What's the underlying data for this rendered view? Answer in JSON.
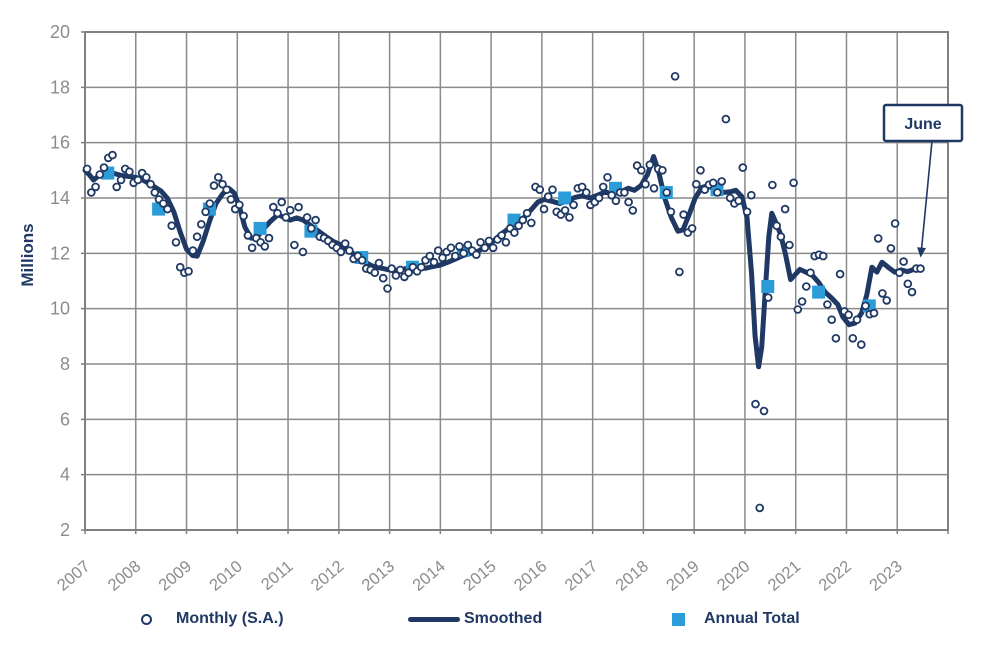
{
  "colors": {
    "navy": "#1f3864",
    "annual_blue": "#2b9cd8",
    "grid": "#8a8a8a",
    "border": "#808080",
    "tick_label": "#8c8c8c",
    "background": "#ffffff"
  },
  "legend": {
    "monthly_label": "Monthly (S.A.)",
    "smoothed_label": "Smoothed",
    "annual_label": "Annual Total"
  },
  "annotation": {
    "label": "June"
  },
  "chart_data": {
    "type": "line",
    "title": "",
    "ylabel": "Millions",
    "ylim": [
      2,
      20
    ],
    "y_ticks": [
      20,
      18,
      16,
      14,
      12,
      10,
      8,
      6,
      4,
      2
    ],
    "xlim": [
      2007,
      2024
    ],
    "x_tick_labels": [
      "2007",
      "2008",
      "2009",
      "2010",
      "2011",
      "2012",
      "2013",
      "2014",
      "2015",
      "2016",
      "2017",
      "2018",
      "2019",
      "2020",
      "2021",
      "2022",
      "2023"
    ],
    "grid": true,
    "legend_position": "bottom",
    "annotation": {
      "label": "June",
      "points_to_year": 2023.46,
      "points_to_value": 11.45
    },
    "series": [
      {
        "name": "Monthly (S.A.)",
        "type": "scatter",
        "monthly": [
          {
            "year": 2007,
            "values": [
              15.05,
              14.2,
              14.4,
              14.85,
              15.1,
              15.45,
              15.55,
              14.4,
              14.65,
              15.05,
              14.95,
              14.55
            ]
          },
          {
            "year": 2008,
            "values": [
              14.65,
              14.9,
              14.75,
              14.5,
              14.2,
              13.95,
              13.8,
              13.6,
              13.0,
              12.4,
              11.5,
              11.3
            ]
          },
          {
            "year": 2009,
            "values": [
              11.35,
              12.1,
              12.6,
              13.05,
              13.5,
              13.8,
              14.45,
              14.75,
              14.5,
              14.3,
              13.95,
              13.6
            ]
          },
          {
            "year": 2010,
            "values": [
              13.75,
              13.35,
              12.65,
              12.2,
              12.55,
              12.4,
              12.25,
              12.55,
              13.67,
              13.45,
              13.85,
              13.3
            ]
          },
          {
            "year": 2011,
            "values": [
              13.56,
              12.3,
              13.67,
              12.05,
              13.3,
              12.9,
              13.2,
              12.6,
              12.55,
              12.45,
              12.3,
              12.2
            ]
          },
          {
            "year": 2012,
            "values": [
              12.05,
              12.35,
              12.1,
              11.8,
              11.9,
              11.75,
              11.45,
              11.4,
              11.3,
              11.65,
              11.1,
              10.73
            ]
          },
          {
            "year": 2013,
            "values": [
              11.45,
              11.2,
              11.4,
              11.15,
              11.3,
              11.5,
              11.35,
              11.5,
              11.75,
              11.9,
              11.68,
              12.1
            ]
          },
          {
            "year": 2014,
            "values": [
              11.84,
              12.05,
              12.2,
              11.9,
              12.25,
              12.0,
              12.3,
              12.1,
              11.95,
              12.4,
              12.2,
              12.45
            ]
          },
          {
            "year": 2015,
            "values": [
              12.2,
              12.5,
              12.65,
              12.4,
              12.9,
              12.75,
              13.0,
              13.2,
              13.45,
              13.1,
              14.4,
              14.3
            ]
          },
          {
            "year": 2016,
            "values": [
              13.6,
              14.05,
              14.3,
              13.5,
              13.4,
              13.55,
              13.3,
              13.75,
              14.35,
              14.4,
              14.2,
              13.75
            ]
          },
          {
            "year": 2017,
            "values": [
              13.85,
              14.0,
              14.4,
              14.75,
              14.1,
              13.9,
              14.2,
              14.2,
              13.85,
              13.55,
              15.17,
              15.0
            ]
          },
          {
            "year": 2018,
            "values": [
              14.5,
              15.2,
              14.35,
              15.05,
              15.0,
              14.2,
              13.5,
              18.4,
              11.33,
              13.4,
              12.75,
              12.9
            ]
          },
          {
            "year": 2019,
            "values": [
              14.5,
              15.0,
              14.3,
              14.48,
              14.55,
              14.2,
              14.6,
              16.85,
              14.0,
              13.8,
              13.9,
              15.1
            ]
          },
          {
            "year": 2020,
            "values": [
              13.5,
              14.1,
              6.55,
              2.8,
              6.3,
              10.4,
              14.47,
              13.0,
              12.6,
              13.6,
              12.3,
              14.55
            ]
          },
          {
            "year": 2021,
            "values": [
              9.97,
              10.26,
              10.8,
              11.3,
              11.9,
              11.95,
              11.9,
              10.15,
              9.6,
              8.93,
              11.25,
              9.9
            ]
          },
          {
            "year": 2022,
            "values": [
              9.78,
              8.93,
              9.6,
              8.7,
              10.1,
              9.8,
              9.84,
              12.54,
              10.55,
              10.3,
              12.18,
              13.08
            ]
          },
          {
            "year": 2023,
            "values": [
              11.3,
              11.7,
              10.9,
              10.6,
              11.45,
              11.45
            ]
          }
        ]
      },
      {
        "name": "Smoothed",
        "type": "line",
        "points": [
          [
            2007.0,
            15.0
          ],
          [
            2007.08,
            14.85
          ],
          [
            2007.17,
            14.65
          ],
          [
            2007.3,
            14.85
          ],
          [
            2007.42,
            15.0
          ],
          [
            2007.55,
            14.9
          ],
          [
            2007.7,
            14.82
          ],
          [
            2007.85,
            14.78
          ],
          [
            2008.0,
            14.75
          ],
          [
            2008.17,
            14.62
          ],
          [
            2008.33,
            14.45
          ],
          [
            2008.5,
            14.25
          ],
          [
            2008.62,
            14.0
          ],
          [
            2008.75,
            13.5
          ],
          [
            2008.88,
            12.75
          ],
          [
            2009.0,
            12.15
          ],
          [
            2009.12,
            11.92
          ],
          [
            2009.21,
            11.9
          ],
          [
            2009.33,
            12.45
          ],
          [
            2009.46,
            13.2
          ],
          [
            2009.58,
            13.8
          ],
          [
            2009.71,
            14.15
          ],
          [
            2009.83,
            14.35
          ],
          [
            2009.94,
            14.18
          ],
          [
            2010.04,
            13.7
          ],
          [
            2010.15,
            12.95
          ],
          [
            2010.27,
            12.55
          ],
          [
            2010.38,
            12.55
          ],
          [
            2010.5,
            12.85
          ],
          [
            2010.65,
            13.15
          ],
          [
            2010.8,
            13.4
          ],
          [
            2010.92,
            13.3
          ],
          [
            2011.04,
            13.2
          ],
          [
            2011.17,
            13.28
          ],
          [
            2011.3,
            13.2
          ],
          [
            2011.45,
            13.0
          ],
          [
            2011.6,
            12.8
          ],
          [
            2011.75,
            12.6
          ],
          [
            2011.9,
            12.42
          ],
          [
            2012.05,
            12.3
          ],
          [
            2012.2,
            12.1
          ],
          [
            2012.35,
            11.9
          ],
          [
            2012.5,
            11.7
          ],
          [
            2012.65,
            11.55
          ],
          [
            2012.8,
            11.48
          ],
          [
            2012.95,
            11.42
          ],
          [
            2013.1,
            11.36
          ],
          [
            2013.25,
            11.42
          ],
          [
            2013.4,
            11.48
          ],
          [
            2013.55,
            11.5
          ],
          [
            2013.7,
            11.46
          ],
          [
            2013.85,
            11.52
          ],
          [
            2014.0,
            11.58
          ],
          [
            2014.15,
            11.68
          ],
          [
            2014.3,
            11.8
          ],
          [
            2014.45,
            11.92
          ],
          [
            2014.6,
            12.0
          ],
          [
            2014.75,
            12.08
          ],
          [
            2014.9,
            12.25
          ],
          [
            2015.05,
            12.45
          ],
          [
            2015.2,
            12.7
          ],
          [
            2015.35,
            12.9
          ],
          [
            2015.5,
            13.1
          ],
          [
            2015.65,
            13.3
          ],
          [
            2015.8,
            13.6
          ],
          [
            2015.92,
            13.85
          ],
          [
            2016.05,
            13.95
          ],
          [
            2016.2,
            13.88
          ],
          [
            2016.35,
            13.8
          ],
          [
            2016.5,
            13.9
          ],
          [
            2016.65,
            14.02
          ],
          [
            2016.8,
            14.08
          ],
          [
            2016.95,
            14.0
          ],
          [
            2017.1,
            14.1
          ],
          [
            2017.25,
            14.22
          ],
          [
            2017.4,
            14.15
          ],
          [
            2017.55,
            14.22
          ],
          [
            2017.7,
            14.35
          ],
          [
            2017.82,
            14.28
          ],
          [
            2017.95,
            14.45
          ],
          [
            2018.08,
            14.85
          ],
          [
            2018.2,
            15.5
          ],
          [
            2018.3,
            14.95
          ],
          [
            2018.42,
            14.0
          ],
          [
            2018.55,
            13.3
          ],
          [
            2018.68,
            12.8
          ],
          [
            2018.78,
            12.85
          ],
          [
            2018.9,
            13.4
          ],
          [
            2019.02,
            14.0
          ],
          [
            2019.15,
            14.38
          ],
          [
            2019.27,
            14.45
          ],
          [
            2019.4,
            14.3
          ],
          [
            2019.55,
            14.2
          ],
          [
            2019.7,
            14.22
          ],
          [
            2019.82,
            14.28
          ],
          [
            2019.94,
            14.05
          ],
          [
            2020.04,
            13.3
          ],
          [
            2020.13,
            11.3
          ],
          [
            2020.2,
            9.0
          ],
          [
            2020.27,
            7.9
          ],
          [
            2020.33,
            8.6
          ],
          [
            2020.4,
            10.6
          ],
          [
            2020.47,
            12.6
          ],
          [
            2020.53,
            13.45
          ],
          [
            2020.6,
            13.15
          ],
          [
            2020.7,
            12.7
          ],
          [
            2020.8,
            11.95
          ],
          [
            2020.9,
            11.05
          ],
          [
            2021.0,
            11.25
          ],
          [
            2021.08,
            11.42
          ],
          [
            2021.2,
            11.32
          ],
          [
            2021.33,
            11.2
          ],
          [
            2021.45,
            10.95
          ],
          [
            2021.58,
            10.6
          ],
          [
            2021.7,
            10.4
          ],
          [
            2021.83,
            10.15
          ],
          [
            2021.93,
            9.7
          ],
          [
            2022.05,
            9.42
          ],
          [
            2022.17,
            9.48
          ],
          [
            2022.3,
            9.85
          ],
          [
            2022.4,
            10.5
          ],
          [
            2022.5,
            11.5
          ],
          [
            2022.6,
            11.32
          ],
          [
            2022.7,
            11.68
          ],
          [
            2022.82,
            11.5
          ],
          [
            2022.95,
            11.32
          ],
          [
            2023.08,
            11.4
          ],
          [
            2023.2,
            11.34
          ],
          [
            2023.33,
            11.42
          ]
        ]
      },
      {
        "name": "Annual Total",
        "type": "square",
        "x_offset_years": 0.45,
        "points": [
          [
            2007,
            14.9
          ],
          [
            2008,
            13.6
          ],
          [
            2009,
            13.6
          ],
          [
            2010,
            12.9
          ],
          [
            2011,
            12.8
          ],
          [
            2012,
            11.85
          ],
          [
            2013,
            11.5
          ],
          [
            2014,
            12.1
          ],
          [
            2015,
            13.2
          ],
          [
            2016,
            14.0
          ],
          [
            2017,
            14.35
          ],
          [
            2018,
            14.2
          ],
          [
            2019,
            14.3
          ],
          [
            2020,
            10.8
          ],
          [
            2021,
            10.6
          ],
          [
            2022,
            10.1
          ]
        ]
      }
    ]
  }
}
